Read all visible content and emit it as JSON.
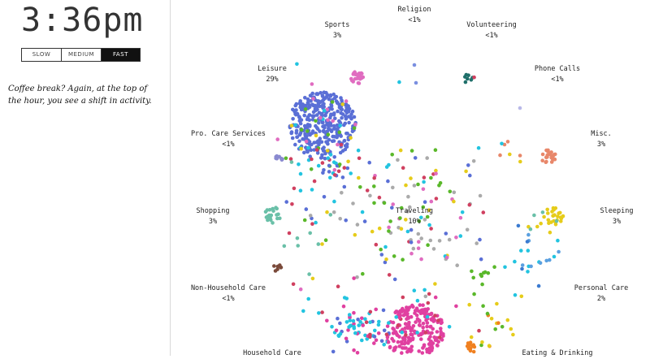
{
  "clock": {
    "time": "3:36pm"
  },
  "speed": {
    "options": [
      {
        "label": "SLOW",
        "active": false
      },
      {
        "label": "MEDIUM",
        "active": false
      },
      {
        "label": "FAST",
        "active": true
      }
    ]
  },
  "caption": "Coffee break? Again, at the top of the hour, you see a shift in activity.",
  "activities": [
    {
      "name": "Religion",
      "pct": "<1%",
      "color": "#7a8fe0"
    },
    {
      "name": "Volunteering",
      "pct": "<1%",
      "color": "#1f6f6a"
    },
    {
      "name": "Sports",
      "pct": "3%",
      "color": "#e06cc0"
    },
    {
      "name": "Phone Calls",
      "pct": "<1%",
      "color": "#b8b8e8"
    },
    {
      "name": "Leisure",
      "pct": "29%",
      "color": "#5a6fd6"
    },
    {
      "name": "Misc.",
      "pct": "3%",
      "color": "#e8876a"
    },
    {
      "name": "Pro. Care Services",
      "pct": "<1%",
      "color": "#8a8ad0"
    },
    {
      "name": "Shopping",
      "pct": "3%",
      "color": "#6ac0a8"
    },
    {
      "name": "Traveling",
      "pct": "10%",
      "color": "#aaaaaa"
    },
    {
      "name": "Sleeping",
      "pct": "3%",
      "color": "#e6cc1a"
    },
    {
      "name": "Non-Household Care",
      "pct": "<1%",
      "color": "#7a4a3a"
    },
    {
      "name": "Personal Care",
      "pct": "2%",
      "color": "#5aa0e0"
    },
    {
      "name": "Household Care",
      "pct": "",
      "color": "#e040a0"
    },
    {
      "name": "Eating & Drinking",
      "pct": "",
      "color": "#f08020"
    }
  ],
  "extra_colors": {
    "cyan": "#22c4e0",
    "green": "#5ab82a",
    "red": "#d04060",
    "blue": "#3a7ad0"
  }
}
